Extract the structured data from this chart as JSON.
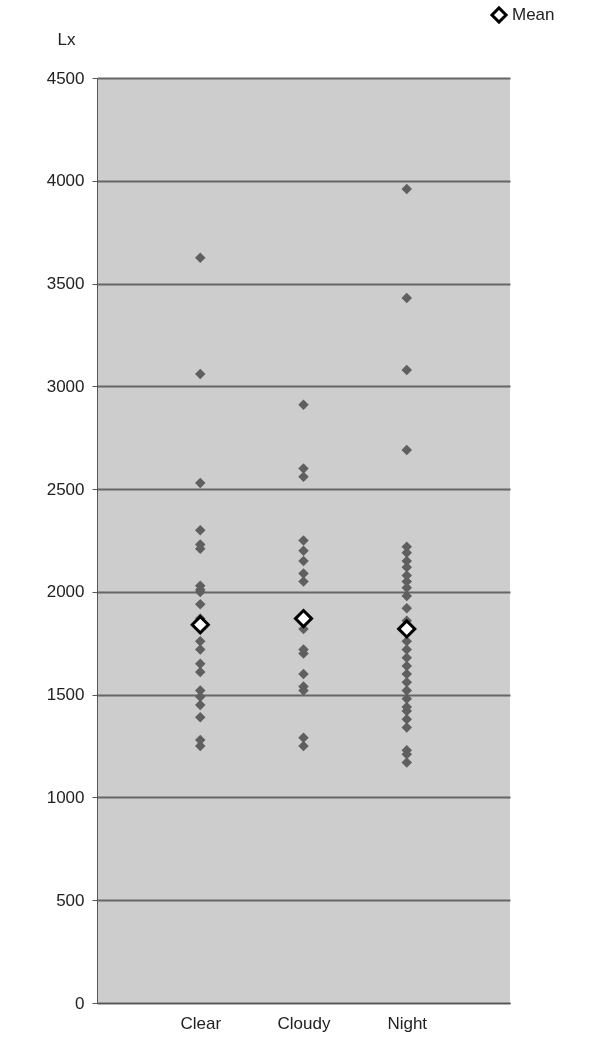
{
  "chart_data": {
    "type": "scatter",
    "ylabel": "Lx",
    "categories": [
      "Clear",
      "Cloudy",
      "Night"
    ],
    "series": [
      {
        "color": "#5f5f5f",
        "x": [
          "Clear",
          "Clear",
          "Clear",
          "Clear",
          "Clear",
          "Clear",
          "Clear",
          "Clear",
          "Clear",
          "Clear",
          "Clear",
          "Clear",
          "Clear",
          "Clear",
          "Clear",
          "Clear",
          "Clear",
          "Clear",
          "Clear",
          "Clear",
          "Clear",
          "Cloudy",
          "Cloudy",
          "Cloudy",
          "Cloudy",
          "Cloudy",
          "Cloudy",
          "Cloudy",
          "Cloudy",
          "Cloudy",
          "Cloudy",
          "Cloudy",
          "Cloudy",
          "Cloudy",
          "Cloudy",
          "Cloudy",
          "Cloudy",
          "Night",
          "Night",
          "Night",
          "Night",
          "Night",
          "Night",
          "Night",
          "Night",
          "Night",
          "Night",
          "Night",
          "Night",
          "Night",
          "Night",
          "Night",
          "Night",
          "Night",
          "Night",
          "Night",
          "Night",
          "Night",
          "Night",
          "Night",
          "Night",
          "Night",
          "Night",
          "Night",
          "Night",
          "Night"
        ],
        "values": [
          3625,
          3060,
          2530,
          2300,
          2230,
          2210,
          2030,
          2010,
          2000,
          1940,
          1870,
          1760,
          1720,
          1650,
          1610,
          1520,
          1490,
          1450,
          1390,
          1280,
          1250,
          2910,
          2600,
          2560,
          2250,
          2200,
          2150,
          2090,
          2050,
          1820,
          1720,
          1700,
          1600,
          1540,
          1520,
          1290,
          1250,
          3960,
          3430,
          3080,
          2690,
          2220,
          2190,
          2150,
          2120,
          2080,
          2050,
          2020,
          1980,
          1920,
          1860,
          1760,
          1720,
          1680,
          1640,
          1600,
          1560,
          1520,
          1480,
          1440,
          1420,
          1380,
          1340,
          1230,
          1210,
          1170
        ]
      },
      {
        "name": "Mean",
        "color": "#000000",
        "x": [
          "Clear",
          "Cloudy",
          "Night"
        ],
        "values": [
          1840,
          1870,
          1820
        ]
      }
    ],
    "ylim": [
      0,
      4500
    ],
    "yticks": [
      0,
      500,
      1000,
      1500,
      2000,
      2500,
      3000,
      3500,
      4000,
      4500
    ],
    "grid": "y",
    "legend": "top right",
    "marker": "diamond"
  }
}
